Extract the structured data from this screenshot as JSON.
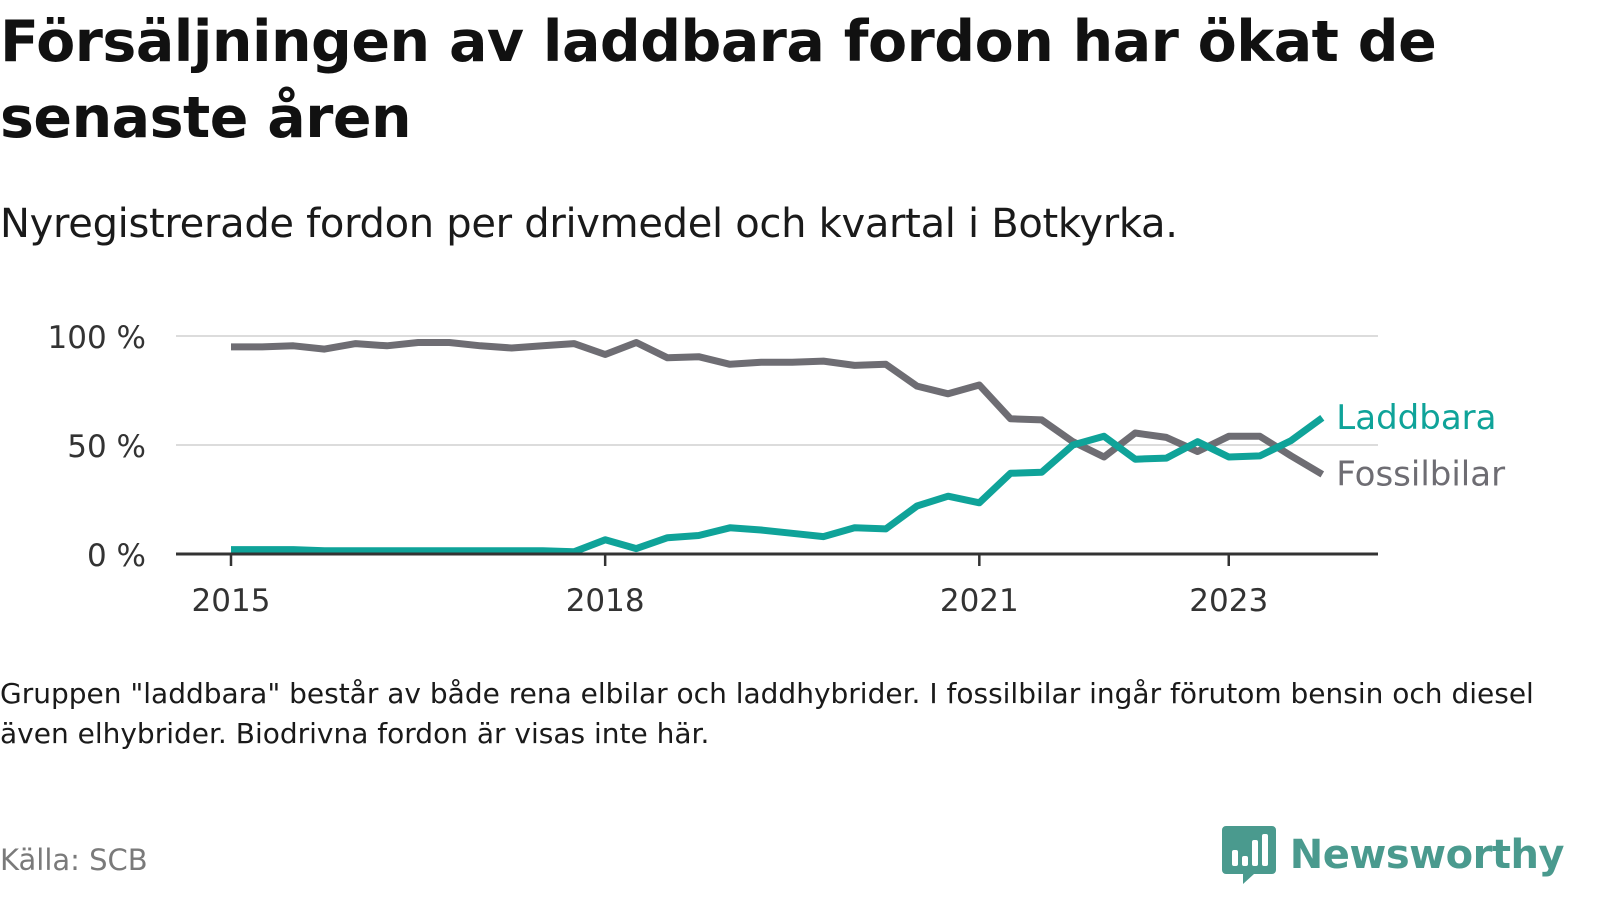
{
  "header": {
    "title": "Försäljningen av laddbara fordon har ökat de senaste åren",
    "subtitle": "Nyregistrerade fordon per drivmedel och kvartal i Botkyrka."
  },
  "footer": {
    "note": "Gruppen \"laddbara\" består av både rena elbilar och laddhybrider. I fossilbilar ingår förutom bensin och diesel även elhybrider. Biodrivna fordon är visas inte här.",
    "source": "Källa: SCB",
    "brand": "Newsworthy",
    "brand_color": "#4a9a8e"
  },
  "chart_data": {
    "type": "line",
    "title": "Försäljningen av laddbara fordon har ökat de senaste åren",
    "subtitle": "Nyregistrerade fordon per drivmedel och kvartal i Botkyrka.",
    "xlabel": "",
    "ylabel": "",
    "x_unit": "quarter",
    "x_start": "2015 Q1",
    "ylim": [
      0,
      100
    ],
    "y_ticks": [
      0,
      50,
      100
    ],
    "y_tick_labels": [
      "0 %",
      "50 %",
      "100 %"
    ],
    "x_ticks": [
      {
        "label": "2015",
        "index": 0
      },
      {
        "label": "2018",
        "index": 12
      },
      {
        "label": "2021",
        "index": 24
      },
      {
        "label": "2023",
        "index": 32
      }
    ],
    "grid": true,
    "legend": "inline-right",
    "series": [
      {
        "name": "Fossilbilar",
        "color": "#6e6d73",
        "values": [
          95,
          95,
          95.5,
          94,
          96.5,
          95.5,
          97,
          97,
          95.5,
          94.5,
          95.5,
          96.5,
          91.5,
          97,
          90,
          90.5,
          87,
          88,
          88,
          88.5,
          86.5,
          87,
          77,
          73.5,
          77.5,
          62,
          61.5,
          51.5,
          44.5,
          55.5,
          53.5,
          47,
          54,
          54,
          45,
          36.5
        ]
      },
      {
        "name": "Laddbara",
        "color": "#0fa399",
        "values": [
          2,
          2,
          2,
          1.5,
          1.5,
          1.5,
          1.5,
          1.5,
          1.5,
          1.5,
          1.5,
          1,
          6.5,
          2.5,
          7.5,
          8.5,
          12,
          11,
          9.5,
          8,
          12,
          11.5,
          22,
          26.5,
          23.5,
          37,
          37.5,
          50,
          54,
          43.5,
          44,
          51.5,
          44.5,
          45,
          52,
          62.5
        ]
      }
    ]
  }
}
